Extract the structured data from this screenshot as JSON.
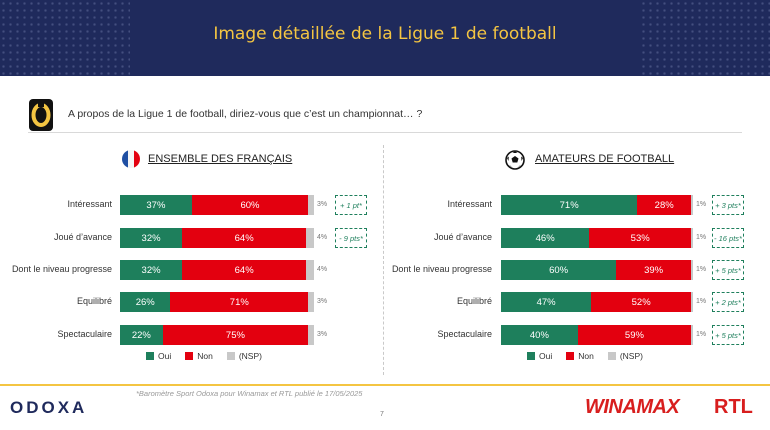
{
  "header": {
    "title": "Image détaillée de la Ligue 1 de football"
  },
  "question": "A propos de la Ligue 1 de football, diriez-vous que c’est un championnat… ?",
  "colors": {
    "oui": "#1e7f5c",
    "non": "#e3000f",
    "nsp": "#c8c8c8",
    "header_bg": "#1f2a5c",
    "accent": "#f4c542"
  },
  "legend": {
    "oui": "Oui",
    "non": "Non",
    "nsp": "(NSP)"
  },
  "chart_data": [
    {
      "type": "bar",
      "stacked": true,
      "orientation": "horizontal",
      "title": "ENSEMBLE DES FRANÇAIS",
      "icon": "france-flag-icon",
      "categories": [
        "Intéressant",
        "Joué d’avance",
        "Dont le niveau progresse",
        "Equilibré",
        "Spectaculaire"
      ],
      "series": [
        {
          "name": "Oui",
          "values": [
            37,
            32,
            32,
            26,
            22
          ],
          "labels": [
            "37%",
            "32%",
            "32%",
            "26%",
            "22%"
          ]
        },
        {
          "name": "Non",
          "values": [
            60,
            64,
            64,
            71,
            75
          ],
          "labels": [
            "60%",
            "64%",
            "64%",
            "71%",
            "75%"
          ]
        },
        {
          "name": "(NSP)",
          "values": [
            3,
            4,
            4,
            3,
            3
          ],
          "labels": [
            "3%",
            "4%",
            "4%",
            "3%",
            "3%"
          ]
        }
      ],
      "deltas": [
        "+ 1 pt*",
        "- 9 pts*",
        "",
        "",
        ""
      ]
    },
    {
      "type": "bar",
      "stacked": true,
      "orientation": "horizontal",
      "title": "AMATEURS DE FOOTBALL",
      "icon": "soccer-ball-icon",
      "categories": [
        "Intéressant",
        "Joué d’avance",
        "Dont le niveau progresse",
        "Equilibré",
        "Spectaculaire"
      ],
      "series": [
        {
          "name": "Oui",
          "values": [
            71,
            46,
            60,
            47,
            40
          ],
          "labels": [
            "71%",
            "46%",
            "60%",
            "47%",
            "40%"
          ]
        },
        {
          "name": "Non",
          "values": [
            28,
            53,
            39,
            52,
            59
          ],
          "labels": [
            "28%",
            "53%",
            "39%",
            "52%",
            "59%"
          ]
        },
        {
          "name": "(NSP)",
          "values": [
            1,
            1,
            1,
            1,
            1
          ],
          "labels": [
            "1%",
            "1%",
            "1%",
            "1%",
            "1%"
          ]
        }
      ],
      "deltas": [
        "+ 3 pts*",
        "- 16 pts*",
        "+ 5 pts*",
        "+ 2 pts*",
        "+ 5 pts*"
      ]
    }
  ],
  "footer": {
    "note": "*Baromètre Sport Odoxa pour Winamax et RTL publié le 17/05/2025",
    "page": "7",
    "logo_left": "ODOXA",
    "logo_mid": "WINAMAX",
    "logo_right": "RTL"
  }
}
